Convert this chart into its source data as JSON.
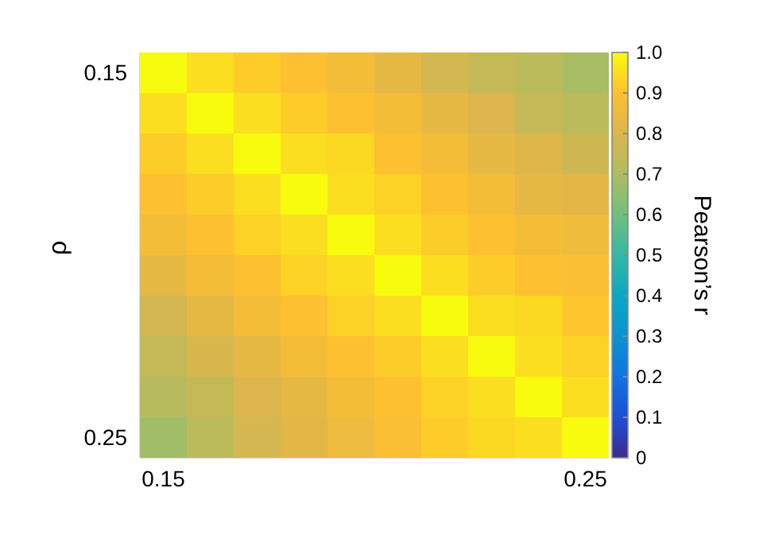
{
  "chart_data": {
    "type": "heatmap",
    "ylabel": "ρ",
    "clabel": "Pearson’s r",
    "categories": [
      "0.15",
      null,
      null,
      null,
      null,
      null,
      null,
      null,
      null,
      "0.25"
    ],
    "y_categories": [
      "0.15",
      null,
      null,
      null,
      null,
      null,
      null,
      null,
      null,
      "0.25"
    ],
    "cells": [
      [
        1,
        0.95,
        0.92,
        0.9,
        0.87,
        0.83,
        0.78,
        0.75,
        0.73,
        0.69
      ],
      [
        0.95,
        1,
        0.95,
        0.92,
        0.9,
        0.87,
        0.83,
        0.8,
        0.75,
        0.73
      ],
      [
        0.92,
        0.95,
        1,
        0.95,
        0.94,
        0.9,
        0.87,
        0.83,
        0.81,
        0.77
      ],
      [
        0.9,
        0.92,
        0.95,
        1,
        0.95,
        0.93,
        0.9,
        0.87,
        0.83,
        0.82
      ],
      [
        0.87,
        0.9,
        0.93,
        0.95,
        1,
        0.95,
        0.92,
        0.9,
        0.87,
        0.86
      ],
      [
        0.83,
        0.87,
        0.9,
        0.93,
        0.95,
        1,
        0.95,
        0.92,
        0.9,
        0.89
      ],
      [
        0.78,
        0.83,
        0.87,
        0.9,
        0.93,
        0.95,
        1,
        0.95,
        0.94,
        0.91
      ],
      [
        0.75,
        0.79,
        0.83,
        0.87,
        0.9,
        0.92,
        0.95,
        1,
        0.95,
        0.93
      ],
      [
        0.72,
        0.75,
        0.8,
        0.83,
        0.87,
        0.9,
        0.93,
        0.95,
        1,
        0.95
      ],
      [
        0.68,
        0.73,
        0.78,
        0.82,
        0.85,
        0.89,
        0.92,
        0.94,
        0.95,
        1
      ]
    ],
    "clim": [
      0,
      1
    ],
    "cticks": [
      0,
      0.1,
      0.2,
      0.3,
      0.4,
      0.5,
      0.6,
      0.7,
      0.8,
      0.9,
      {
        "value": 1,
        "label": "1.0"
      }
    ]
  }
}
